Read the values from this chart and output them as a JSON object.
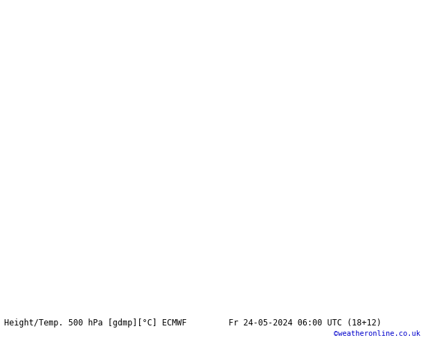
{
  "title_left": "Height/Temp. 500 hPa [gdmp][°C] ECMWF",
  "title_right": "Fr 24-05-2024 06:00 UTC (18+12)",
  "credit": "©weatheronline.co.uk",
  "land_color": "#c8f0a0",
  "sea_color": "#d0d0d0",
  "border_color": "#aaaaaa",
  "bottom_text_color": "#000000",
  "credit_color": "#0000cc",
  "black_lw": 1.8,
  "orange_lw": 1.6,
  "green_lw": 1.5,
  "extent": [
    -10,
    42,
    27,
    50
  ],
  "figsize": [
    6.34,
    4.9
  ],
  "dpi": 100
}
